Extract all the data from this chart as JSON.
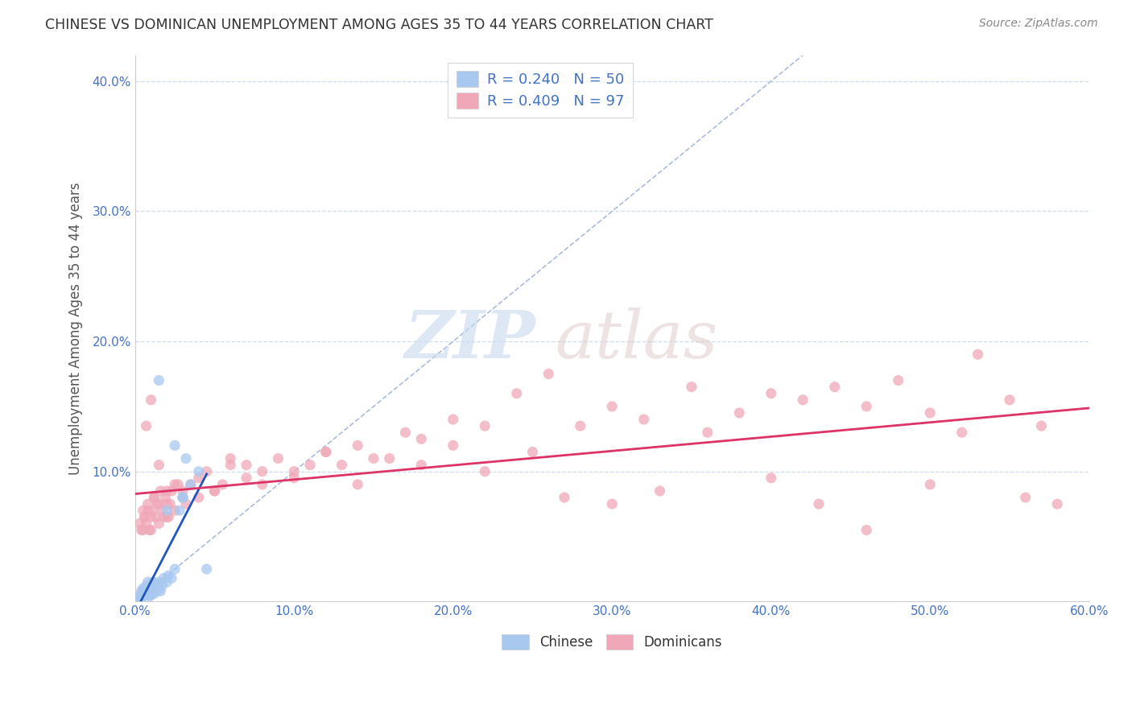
{
  "title": "CHINESE VS DOMINICAN UNEMPLOYMENT AMONG AGES 35 TO 44 YEARS CORRELATION CHART",
  "source": "Source: ZipAtlas.com",
  "ylabel": "Unemployment Among Ages 35 to 44 years",
  "xmin": 0.0,
  "xmax": 60.0,
  "ymin": 0.0,
  "ymax": 42.0,
  "xticks": [
    0.0,
    10.0,
    20.0,
    30.0,
    40.0,
    50.0,
    60.0
  ],
  "yticks": [
    0.0,
    10.0,
    20.0,
    30.0,
    40.0
  ],
  "xtick_labels": [
    "0.0%",
    "10.0%",
    "20.0%",
    "30.0%",
    "40.0%",
    "50.0%",
    "60.0%"
  ],
  "ytick_labels": [
    "",
    "10.0%",
    "20.0%",
    "30.0%",
    "40.0%"
  ],
  "chinese_R": 0.24,
  "chinese_N": 50,
  "dominican_R": 0.409,
  "dominican_N": 97,
  "chinese_color": "#a8c8f0",
  "dominican_color": "#f0a8b8",
  "chinese_line_color": "#2255bb",
  "dominican_line_color": "#dd3366",
  "diagonal_color": "#aabbdd",
  "background_color": "#ffffff",
  "grid_color": "#ccddee",
  "chinese_x": [
    0.3,
    0.4,
    0.5,
    0.5,
    0.6,
    0.7,
    0.7,
    0.8,
    0.8,
    0.9,
    0.9,
    1.0,
    1.0,
    1.0,
    1.1,
    1.1,
    1.2,
    1.2,
    1.3,
    1.3,
    1.4,
    1.5,
    1.5,
    1.6,
    1.7,
    1.8,
    2.0,
    2.1,
    2.3,
    2.5,
    2.8,
    3.0,
    3.2,
    3.5,
    4.0,
    0.2,
    0.3,
    0.4,
    0.5,
    0.6,
    0.7,
    0.8,
    0.9,
    1.0,
    1.1,
    1.5,
    2.0,
    2.5,
    3.0,
    4.5
  ],
  "chinese_y": [
    0.2,
    0.3,
    0.5,
    1.0,
    0.8,
    1.2,
    0.5,
    0.8,
    1.5,
    0.6,
    1.0,
    0.5,
    0.8,
    1.2,
    0.7,
    1.5,
    0.6,
    1.1,
    0.8,
    1.4,
    1.0,
    0.9,
    1.5,
    0.8,
    1.2,
    1.8,
    1.5,
    2.0,
    1.8,
    2.5,
    7.0,
    8.0,
    11.0,
    9.0,
    10.0,
    0.2,
    0.5,
    0.8,
    0.4,
    0.9,
    0.5,
    0.7,
    0.4,
    0.6,
    0.9,
    17.0,
    7.0,
    12.0,
    8.0,
    2.5
  ],
  "dominican_x": [
    0.3,
    0.4,
    0.5,
    0.6,
    0.7,
    0.8,
    0.9,
    1.0,
    1.1,
    1.2,
    1.3,
    1.4,
    1.5,
    1.6,
    1.7,
    1.8,
    1.9,
    2.0,
    2.1,
    2.2,
    2.3,
    2.5,
    2.7,
    3.0,
    3.2,
    3.5,
    4.0,
    4.5,
    5.0,
    5.5,
    6.0,
    7.0,
    8.0,
    9.0,
    10.0,
    11.0,
    12.0,
    13.0,
    14.0,
    15.0,
    17.0,
    18.0,
    20.0,
    22.0,
    24.0,
    26.0,
    28.0,
    30.0,
    32.0,
    35.0,
    38.0,
    40.0,
    42.0,
    44.0,
    46.0,
    48.0,
    50.0,
    52.0,
    55.0,
    57.0,
    0.5,
    0.6,
    0.8,
    1.0,
    1.2,
    1.5,
    2.0,
    2.5,
    3.0,
    4.0,
    5.0,
    6.0,
    7.0,
    8.0,
    10.0,
    12.0,
    14.0,
    16.0,
    18.0,
    20.0,
    22.0,
    25.0,
    27.0,
    30.0,
    33.0,
    36.0,
    40.0,
    43.0,
    46.0,
    50.0,
    53.0,
    56.0,
    58.0,
    0.7,
    1.0,
    1.5,
    2.0
  ],
  "dominican_y": [
    6.0,
    5.5,
    7.0,
    6.5,
    6.0,
    7.5,
    5.5,
    6.5,
    7.0,
    8.0,
    6.5,
    7.5,
    6.0,
    8.5,
    7.0,
    6.5,
    8.0,
    7.5,
    6.5,
    7.5,
    8.5,
    7.0,
    9.0,
    8.5,
    7.5,
    9.0,
    8.0,
    10.0,
    8.5,
    9.0,
    10.5,
    9.5,
    10.0,
    11.0,
    9.5,
    10.5,
    11.5,
    10.5,
    12.0,
    11.0,
    13.0,
    12.5,
    14.0,
    13.5,
    16.0,
    17.5,
    13.5,
    15.0,
    14.0,
    16.5,
    14.5,
    16.0,
    15.5,
    16.5,
    15.0,
    17.0,
    14.5,
    13.0,
    15.5,
    13.5,
    5.5,
    6.5,
    7.0,
    5.5,
    8.0,
    7.5,
    8.5,
    9.0,
    8.0,
    9.5,
    8.5,
    11.0,
    10.5,
    9.0,
    10.0,
    11.5,
    9.0,
    11.0,
    10.5,
    12.0,
    10.0,
    11.5,
    8.0,
    7.5,
    8.5,
    13.0,
    9.5,
    7.5,
    5.5,
    9.0,
    19.0,
    8.0,
    7.5,
    13.5,
    15.5,
    10.5,
    6.5
  ]
}
